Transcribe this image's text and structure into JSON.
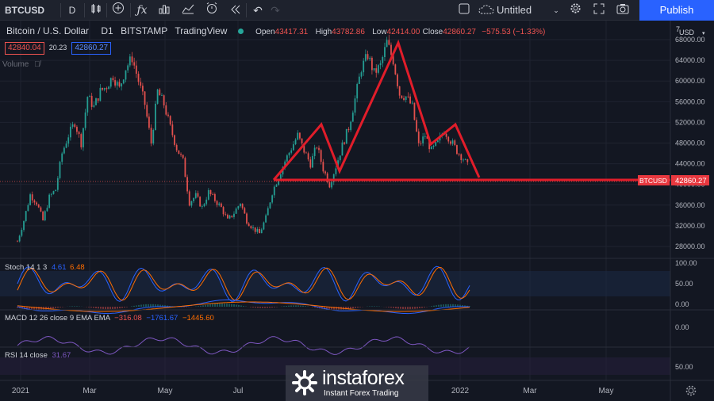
{
  "toolbar": {
    "symbol": "BTCUSD",
    "interval": "D",
    "layout_name": "Untitled",
    "publish_label": "Publish"
  },
  "legend": {
    "pair_title": "Bitcoin / U.S. Dollar",
    "timeframe": "D1",
    "exchange": "BITSTAMP",
    "source": "TradingView",
    "open_label": "Open",
    "open_value": "43417.31",
    "high_label": "High",
    "high_value": "43782.86",
    "low_label": "Low",
    "low_value": "42414.00",
    "close_label": "Close",
    "close_value": "42860.27",
    "change": "−575.53 (−1.33%)",
    "bid": "42840.04",
    "spread": "20.23",
    "ask": "42860.27",
    "volume_label": "Volume"
  },
  "price_axis": {
    "currency": "USD",
    "ticks": [
      "68000.00",
      "64000.00",
      "60000.00",
      "56000.00",
      "52000.00",
      "48000.00",
      "44000.00",
      "40000.00",
      "36000.00",
      "32000.00",
      "28000.00"
    ],
    "last_symbol": "BTCUSD",
    "last_price": "42860.27"
  },
  "indicators": {
    "stoch": {
      "label": "Stoch 14 1 3",
      "k": "4.61",
      "d": "6.48",
      "ticks": [
        "100.00",
        "50.00",
        "0.00"
      ]
    },
    "macd": {
      "label": "MACD 12 26 close 9 EMA EMA",
      "v1": "−316.08",
      "v2": "−1761.67",
      "v3": "−1445.60",
      "ticks": [
        "0.00"
      ]
    },
    "rsi": {
      "label": "RSI 14 close",
      "value": "31.67",
      "ticks": [
        "50.00"
      ]
    }
  },
  "time_axis": [
    "2021",
    "Mar",
    "May",
    "Jul",
    "2022",
    "Mar",
    "May"
  ],
  "watermark": {
    "brand": "instaforex",
    "tagline": "Instant Forex Trading"
  },
  "colors": {
    "up": "#26a69a",
    "down": "#ef5350",
    "pattern": "#e11d2a",
    "accent": "#2962ff"
  },
  "chart_data": {
    "type": "candlestick",
    "x_range": [
      "2021-01-01",
      "2022-05-31"
    ],
    "ylim": [
      26000,
      70000
    ],
    "closes": [
      29000,
      33000,
      38000,
      36500,
      33000,
      37500,
      39000,
      46000,
      49500,
      52000,
      48000,
      57000,
      55000,
      58000,
      59000,
      61000,
      58500,
      62500,
      64500,
      60000,
      55500,
      48000,
      58000,
      55500,
      51000,
      47000,
      44500,
      36500,
      37800,
      35500,
      38500,
      37000,
      35500,
      33000,
      34500,
      36500,
      33000,
      31500,
      30500,
      33500,
      38500,
      41500,
      44500,
      47000,
      49500,
      46500,
      44000,
      47500,
      43000,
      40000,
      43500,
      47500,
      51000,
      56500,
      62500,
      65000,
      61500,
      63000,
      67500,
      64000,
      57500,
      57000,
      55000,
      47500,
      49500,
      46500,
      48000,
      50500,
      48500,
      46500,
      45000,
      42860
    ],
    "annotation_pattern": "head and shoulders with neckline"
  }
}
